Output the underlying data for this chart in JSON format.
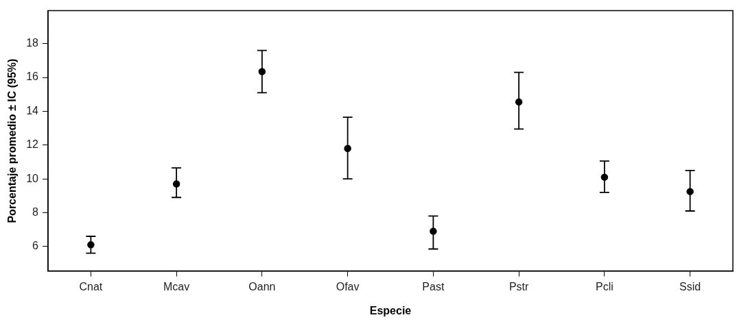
{
  "chart_data": {
    "type": "scatter",
    "xlabel": "Especie",
    "ylabel": "Porcentaje promedio ± IC (95%)",
    "categories": [
      "Cnat",
      "Mcav",
      "Oann",
      "Ofav",
      "Past",
      "Pstr",
      "Pcli",
      "Ssid"
    ],
    "values": [
      6.1,
      9.7,
      16.35,
      11.8,
      6.9,
      14.55,
      10.1,
      9.25
    ],
    "errors": [
      [
        5.6,
        6.6
      ],
      [
        8.9,
        10.65
      ],
      [
        15.1,
        17.6
      ],
      [
        10.0,
        13.65
      ],
      [
        5.85,
        7.8
      ],
      [
        12.95,
        16.3
      ],
      [
        9.2,
        11.05
      ],
      [
        8.1,
        10.5
      ]
    ],
    "color": "#000000",
    "marker": "circle",
    "ylim": [
      4.55,
      19.95
    ],
    "yticks": [
      6,
      8,
      10,
      12,
      14,
      16,
      18
    ],
    "grid": false,
    "legend": false
  }
}
